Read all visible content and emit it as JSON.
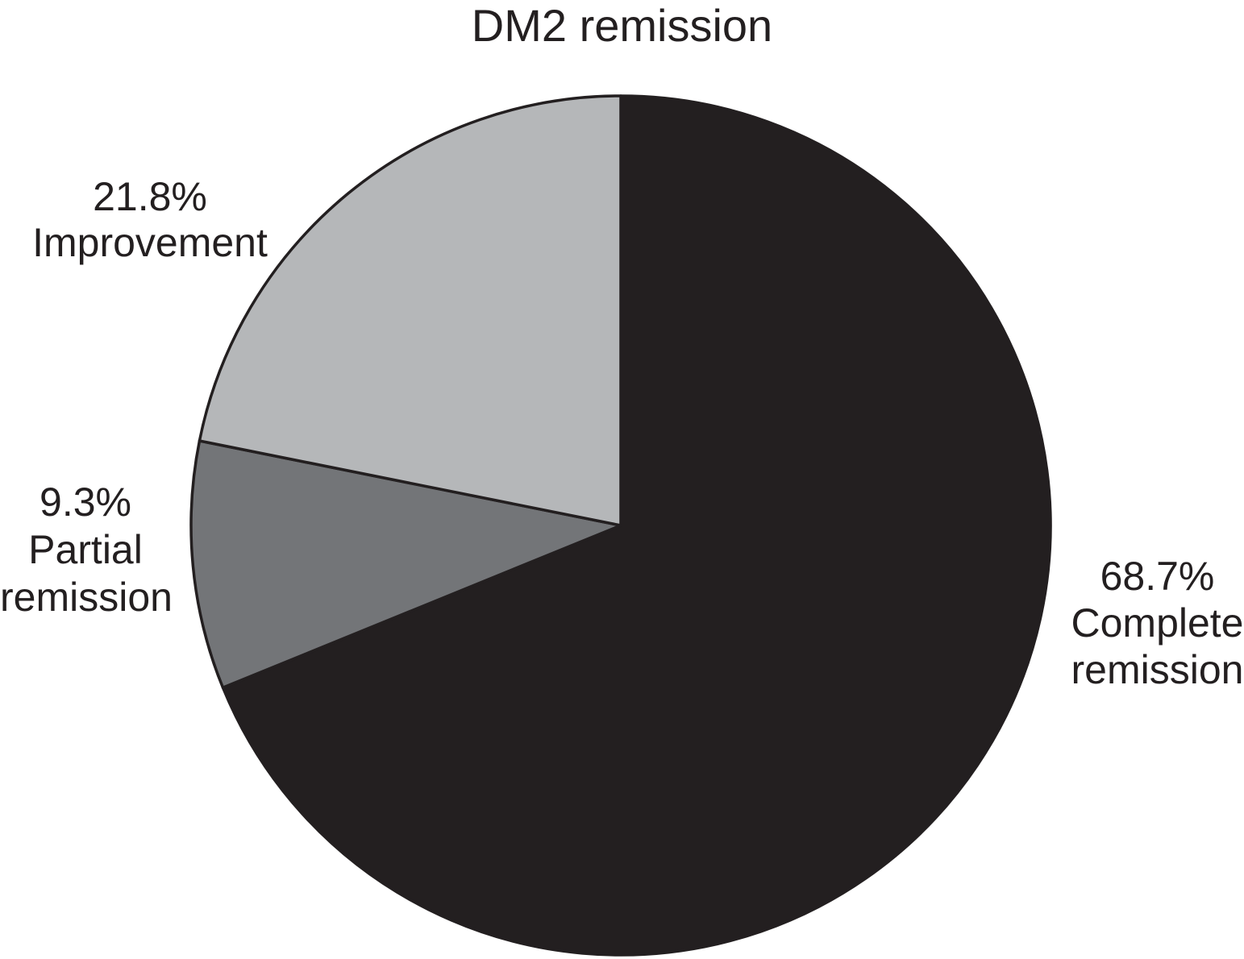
{
  "figure": {
    "background_color": "#ffffff",
    "text_color": "#231f20"
  },
  "chart_data": {
    "type": "pie",
    "title": "DM2 remission",
    "categories": [
      "Complete remission",
      "Partial remission",
      "Improvement"
    ],
    "values": [
      68.7,
      9.3,
      21.8
    ],
    "unit": "%",
    "colors": [
      "#231f20",
      "#737578",
      "#b5b7b9"
    ],
    "stroke_color": "#231f20",
    "start_angle_deg": 0,
    "direction": "clockwise",
    "legend": "none",
    "labels_position": "outside",
    "slices": [
      {
        "id": "complete-remission",
        "name": "Complete remission",
        "value": 68.7,
        "color": "#231f20",
        "callout": "68.7%\nComplete\nremission"
      },
      {
        "id": "partial-remission",
        "name": "Partial remission",
        "value": 9.3,
        "color": "#737578",
        "callout": "9.3%\nPartial\nremission"
      },
      {
        "id": "improvement",
        "name": "Improvement",
        "value": 21.8,
        "color": "#b5b7b9",
        "callout": "21.8%\nImprovement"
      }
    ]
  }
}
